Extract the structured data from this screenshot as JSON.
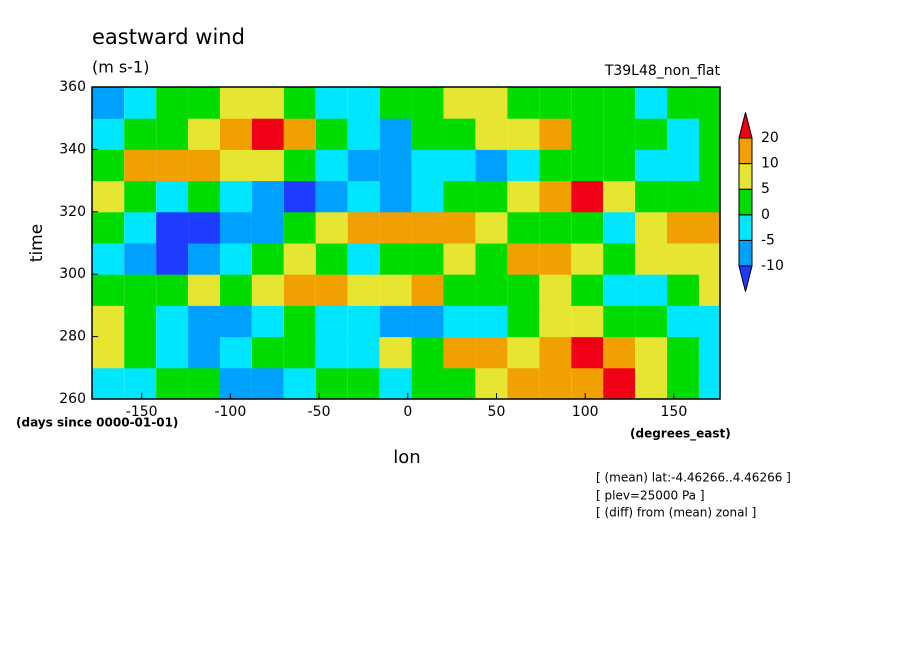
{
  "chart_data": {
    "type": "contour",
    "title": "eastward wind",
    "subtitle": "(m s-1)",
    "run_label": "T39L48_non_flat",
    "xlabel": "lon",
    "ylabel": "time",
    "ylabel_units": "(days since 0000-01-01)",
    "xlabel_units": "(degrees_east)",
    "notes": [
      "[ (mean) lat:-4.46266..4.46266 ]",
      "[ plev=25000 Pa ]",
      "[ (diff) from (mean) zonal ]"
    ],
    "xlim": [
      -178,
      176
    ],
    "ylim": [
      260,
      360
    ],
    "xticks": [
      -150,
      -100,
      -50,
      0,
      50,
      100,
      150
    ],
    "yticks": [
      260,
      280,
      300,
      320,
      340,
      360
    ],
    "levels": [
      -10,
      -5,
      0,
      5,
      10,
      20
    ],
    "colors": [
      "#1e3cff",
      "#00a0ff",
      "#00e6ff",
      "#00dc00",
      "#e6e632",
      "#f0a000",
      "#f00014"
    ],
    "x": [
      -169,
      -151,
      -133,
      -115,
      -97,
      -79,
      -61,
      -43,
      -25,
      -7,
      11,
      29,
      47,
      65,
      83,
      101,
      119,
      137,
      155,
      173
    ],
    "y": [
      265,
      275,
      285,
      295,
      305,
      315,
      325,
      335,
      345,
      355
    ],
    "z": [
      [
        -5,
        -3,
        0,
        2,
        -6,
        -8,
        -4,
        0,
        3,
        -2,
        0,
        4,
        8,
        10,
        12,
        15,
        22,
        5,
        0,
        -3
      ],
      [
        8,
        3,
        -2,
        -6,
        -3,
        0,
        2,
        -4,
        -2,
        5,
        2,
        10,
        14,
        8,
        12,
        22,
        15,
        6,
        2,
        -4
      ],
      [
        6,
        2,
        -5,
        -8,
        -6,
        -3,
        0,
        -2,
        -5,
        -8,
        -6,
        -3,
        -1,
        2,
        5,
        8,
        3,
        0,
        -3,
        -2
      ],
      [
        3,
        0,
        4,
        6,
        2,
        8,
        10,
        12,
        5,
        8,
        12,
        3,
        0,
        4,
        6,
        2,
        -2,
        -5,
        0,
        5
      ],
      [
        -4,
        -8,
        -12,
        -6,
        -3,
        0,
        5,
        2,
        -2,
        0,
        4,
        8,
        2,
        10,
        12,
        6,
        3,
        5,
        8,
        6
      ],
      [
        0,
        -4,
        -11,
        -12,
        -8,
        -6,
        2,
        8,
        12,
        10,
        12,
        14,
        8,
        4,
        0,
        2,
        -3,
        8,
        12,
        10
      ],
      [
        5,
        2,
        -2,
        0,
        -5,
        -8,
        -11,
        -6,
        -2,
        -8,
        -4,
        0,
        3,
        5,
        10,
        21,
        8,
        4,
        2,
        0
      ],
      [
        2,
        12,
        14,
        10,
        8,
        5,
        0,
        -3,
        -8,
        -6,
        -4,
        -2,
        -6,
        -4,
        0,
        2,
        0,
        -3,
        -2,
        2
      ],
      [
        -2,
        0,
        4,
        8,
        12,
        21,
        10,
        2,
        -4,
        -6,
        0,
        4,
        8,
        6,
        10,
        4,
        2,
        0,
        -4,
        3
      ],
      [
        -6,
        -3,
        0,
        3,
        5,
        6,
        2,
        -2,
        -4,
        0,
        3,
        5,
        6,
        4,
        2,
        0,
        2,
        -2,
        0,
        2
      ]
    ]
  }
}
